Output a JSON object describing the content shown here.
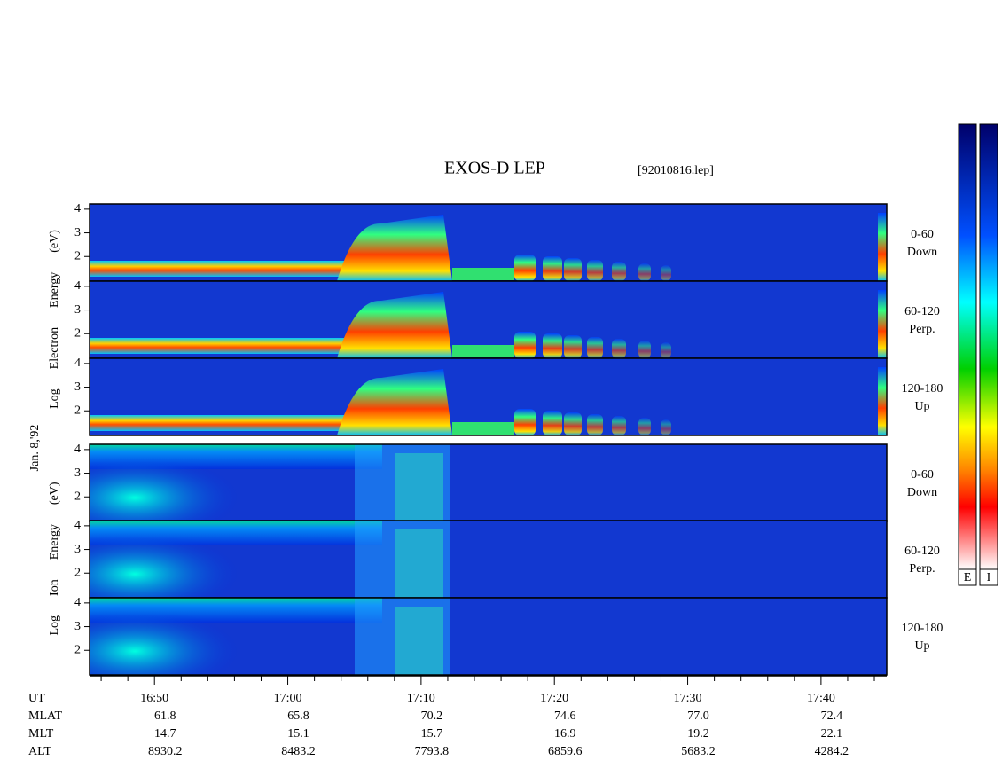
{
  "chart_data": {
    "type": "spectrogram",
    "title": "EXOS-D LEP",
    "subtitle": "[92010816.lep]",
    "date_label": "Jan. 8,'92",
    "groups": [
      {
        "ylabel_words": [
          "Log",
          "Electron",
          "Energy",
          "(eV)"
        ]
      },
      {
        "ylabel_words": [
          "Log",
          "Ion",
          "Energy",
          "(eV)"
        ]
      }
    ],
    "panels": [
      {
        "angle": "0-60",
        "direction": "Down"
      },
      {
        "angle": "60-120",
        "direction": "Perp."
      },
      {
        "angle": "120-180",
        "direction": "Up"
      },
      {
        "angle": "0-60",
        "direction": "Down"
      },
      {
        "angle": "60-120",
        "direction": "Perp."
      },
      {
        "angle": "120-180",
        "direction": "Up"
      }
    ],
    "ylim": [
      0.96,
      4.22
    ],
    "yticks": [
      2,
      3,
      4
    ],
    "xlim": [
      1005.13,
      1064.93
    ],
    "xticks": [
      {
        "value": 1010,
        "label": "16:50"
      },
      {
        "value": 1020,
        "label": "17:00"
      },
      {
        "value": 1030,
        "label": "17:10"
      },
      {
        "value": 1040,
        "label": "17:20"
      },
      {
        "value": 1050,
        "label": "17:30"
      },
      {
        "value": 1060,
        "label": "17:40"
      }
    ],
    "xminorticks": [
      1006,
      1008,
      1012,
      1014,
      1016,
      1018,
      1022,
      1024,
      1026,
      1028,
      1032,
      1034,
      1036,
      1038,
      1042,
      1044,
      1046,
      1048,
      1052,
      1054,
      1056,
      1058,
      1062,
      1064
    ],
    "orbit_rows": [
      {
        "name": "UT",
        "values": []
      },
      {
        "name": "MLAT",
        "values": [
          "61.8",
          "65.8",
          "70.2",
          "74.6",
          "77.0",
          "72.4"
        ]
      },
      {
        "name": "MLT",
        "values": [
          "14.7",
          "15.1",
          "15.7",
          "16.9",
          "19.2",
          "22.1"
        ]
      },
      {
        "name": "ALT",
        "values": [
          "8930.2",
          "8483.2",
          "7793.8",
          "6859.6",
          "5683.2",
          "4284.2"
        ]
      }
    ],
    "colorbars": [
      "E",
      "I"
    ]
  }
}
